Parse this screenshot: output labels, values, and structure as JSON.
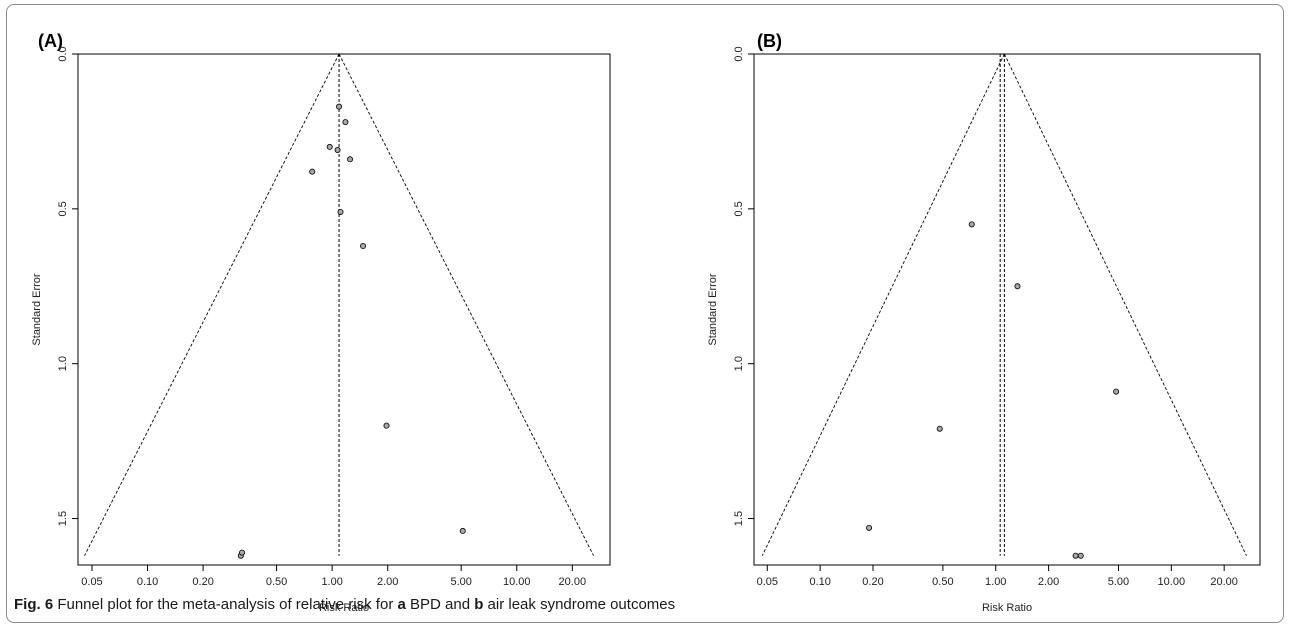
{
  "caption": {
    "label": "Fig. 6",
    "text_1": " Funnel plot for the meta-analysis of relative risk for ",
    "a": "a",
    "text_2": " BPD and ",
    "b": "b",
    "text_3": " air leak syndrome outcomes"
  },
  "colors": {
    "point_fill": "#a8a8a8",
    "line": "#000000"
  },
  "chart_data": [
    {
      "type": "scatter",
      "panel_label": "(A)",
      "xlabel": "Risk Ratio",
      "ylabel": "Standard Error",
      "x_scale": "log",
      "y_reversed": true,
      "grid": false,
      "xlim": [
        0.042,
        32
      ],
      "ylim": [
        0,
        1.65
      ],
      "x_ticks": [
        0.05,
        0.1,
        0.2,
        0.5,
        1.0,
        2.0,
        5.0,
        10.0,
        20.0
      ],
      "x_tick_labels": [
        "0.05",
        "0.10",
        "0.20",
        "0.50",
        "1.00",
        "2.00",
        "5.00",
        "10.00",
        "20.00"
      ],
      "y_ticks": [
        0.0,
        0.5,
        1.0,
        1.5
      ],
      "y_tick_labels": [
        "0.0",
        "0.5",
        "1.0",
        "1.5"
      ],
      "pooled_estimate": [
        1.09
      ],
      "funnel_apex": 1.09,
      "funnel_se_max": 1.62,
      "points": [
        {
          "x": 1.09,
          "y": 0.17
        },
        {
          "x": 1.18,
          "y": 0.22
        },
        {
          "x": 0.97,
          "y": 0.3
        },
        {
          "x": 1.07,
          "y": 0.31
        },
        {
          "x": 1.25,
          "y": 0.34
        },
        {
          "x": 0.78,
          "y": 0.38
        },
        {
          "x": 1.11,
          "y": 0.51
        },
        {
          "x": 1.47,
          "y": 0.62
        },
        {
          "x": 1.97,
          "y": 1.2
        },
        {
          "x": 5.1,
          "y": 1.54
        },
        {
          "x": 0.32,
          "y": 1.62
        },
        {
          "x": 0.325,
          "y": 1.61
        }
      ]
    },
    {
      "type": "scatter",
      "panel_label": "(B)",
      "xlabel": "Risk Ratio",
      "ylabel": "Standard Error",
      "x_scale": "log",
      "y_reversed": true,
      "grid": false,
      "xlim": [
        0.042,
        32
      ],
      "ylim": [
        0,
        1.65
      ],
      "x_ticks": [
        0.05,
        0.1,
        0.2,
        0.5,
        1.0,
        2.0,
        5.0,
        10.0,
        20.0
      ],
      "x_tick_labels": [
        "0.05",
        "0.10",
        "0.20",
        "0.50",
        "1.00",
        "2.00",
        "5.00",
        "10.00",
        "20.00"
      ],
      "y_ticks": [
        0.0,
        0.5,
        1.0,
        1.5
      ],
      "y_tick_labels": [
        "0.0",
        "0.5",
        "1.0",
        "1.5"
      ],
      "pooled_estimate": [
        1.06,
        1.12
      ],
      "funnel_apex": 1.12,
      "funnel_se_max": 1.62,
      "points": [
        {
          "x": 0.73,
          "y": 0.55
        },
        {
          "x": 1.33,
          "y": 0.75
        },
        {
          "x": 4.85,
          "y": 1.09
        },
        {
          "x": 0.48,
          "y": 1.21
        },
        {
          "x": 0.19,
          "y": 1.53
        },
        {
          "x": 2.85,
          "y": 1.62
        },
        {
          "x": 3.05,
          "y": 1.62
        }
      ]
    }
  ]
}
